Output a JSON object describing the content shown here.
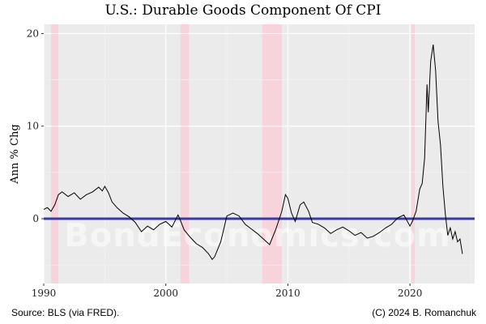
{
  "chart_data": {
    "type": "line",
    "title": "U.S.: Durable Goods Component Of CPI",
    "xlabel": "",
    "ylabel": "Ann % Chg",
    "xlim": [
      1990,
      2025.3
    ],
    "ylim": [
      -7,
      21
    ],
    "x_ticks": [
      1990,
      2000,
      2010,
      2020
    ],
    "y_ticks": [
      0,
      10,
      20
    ],
    "grid": true,
    "legend": "none",
    "recessions": [
      [
        1990.6,
        1991.2
      ],
      [
        2001.2,
        2001.9
      ],
      [
        2007.9,
        2009.5
      ],
      [
        2020.1,
        2020.4
      ]
    ],
    "reference_line": {
      "y": 0,
      "color": "#3a3aa0"
    },
    "series": [
      {
        "color": "#000000",
        "x": [
          1990.0,
          1990.3,
          1990.6,
          1990.9,
          1991.2,
          1991.5,
          1992.0,
          1992.5,
          1993.0,
          1993.5,
          1994.0,
          1994.5,
          1994.8,
          1995.0,
          1995.3,
          1995.6,
          1996.0,
          1996.5,
          1997.0,
          1997.5,
          1998.0,
          1998.5,
          1999.0,
          1999.5,
          2000.0,
          2000.5,
          2001.0,
          2001.2,
          2001.5,
          2002.0,
          2002.5,
          2003.0,
          2003.5,
          2003.8,
          2004.0,
          2004.5,
          2005.0,
          2005.5,
          2006.0,
          2006.5,
          2007.0,
          2007.5,
          2008.0,
          2008.5,
          2009.0,
          2009.5,
          2009.8,
          2010.0,
          2010.3,
          2010.6,
          2011.0,
          2011.3,
          2011.7,
          2012.0,
          2012.5,
          2013.0,
          2013.5,
          2014.0,
          2014.5,
          2015.0,
          2015.5,
          2016.0,
          2016.5,
          2017.0,
          2017.5,
          2018.0,
          2018.5,
          2019.0,
          2019.5,
          2020.0,
          2020.2,
          2020.5,
          2020.8,
          2021.0,
          2021.2,
          2021.4,
          2021.5,
          2021.7,
          2021.9,
          2022.1,
          2022.3,
          2022.5,
          2022.7,
          2022.9,
          2023.1,
          2023.3,
          2023.5,
          2023.7,
          2023.9,
          2024.1,
          2024.3
        ],
        "y": [
          1.0,
          1.2,
          0.8,
          1.5,
          2.6,
          2.9,
          2.4,
          2.8,
          2.1,
          2.6,
          2.9,
          3.4,
          3.0,
          3.5,
          2.8,
          1.8,
          1.2,
          0.6,
          0.2,
          -0.4,
          -1.4,
          -0.8,
          -1.2,
          -0.6,
          -0.3,
          -0.9,
          0.4,
          -0.2,
          -1.2,
          -2.0,
          -2.7,
          -3.1,
          -3.8,
          -4.4,
          -4.1,
          -2.5,
          0.3,
          0.6,
          0.3,
          -0.6,
          -1.1,
          -1.6,
          -2.2,
          -2.8,
          -1.2,
          0.8,
          2.6,
          2.2,
          0.6,
          -0.3,
          1.5,
          1.8,
          0.8,
          -0.4,
          -0.6,
          -1.0,
          -1.6,
          -1.2,
          -0.9,
          -1.3,
          -1.8,
          -1.5,
          -2.1,
          -1.9,
          -1.5,
          -1.0,
          -0.6,
          0.1,
          0.4,
          -0.8,
          -0.3,
          0.8,
          3.2,
          3.8,
          6.5,
          14.5,
          11.5,
          17.0,
          18.8,
          16.0,
          10.5,
          8.0,
          3.5,
          0.5,
          -1.8,
          -1.0,
          -2.2,
          -1.4,
          -2.5,
          -2.2,
          -3.8
        ]
      }
    ]
  },
  "watermark": "BondEconomics.com",
  "footer": {
    "source": "Source: BLS (via FRED).",
    "credit": "(C) 2024 B. Romanchuk"
  }
}
